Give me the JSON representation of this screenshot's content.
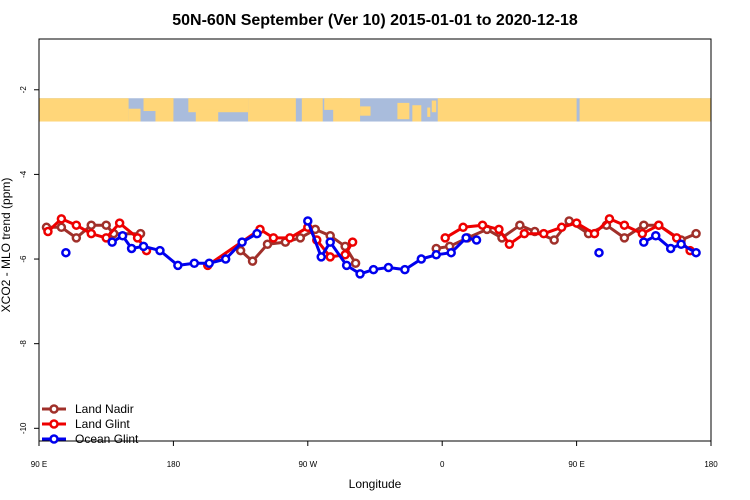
{
  "chart_data": {
    "type": "line",
    "title": "50N-60N September (Ver 10)   2015-01-01 to 2020-12-18",
    "xlabel": "Longitude",
    "ylabel": "XCO2 - MLO trend (ppm)",
    "xlim": [
      90,
      540
    ],
    "ylim": [
      -10.3,
      -0.8
    ],
    "x_ticks": [
      {
        "value": 90,
        "label": "90 E"
      },
      {
        "value": 180,
        "label": "180"
      },
      {
        "value": 270,
        "label": "90 W"
      },
      {
        "value": 360,
        "label": "0"
      },
      {
        "value": 450,
        "label": "90 E"
      },
      {
        "value": 540,
        "label": "180"
      }
    ],
    "y_ticks": [
      {
        "value": -2,
        "label": "-2"
      },
      {
        "value": -4,
        "label": "-4"
      },
      {
        "value": -6,
        "label": "-6"
      },
      {
        "value": -8,
        "label": "-8"
      },
      {
        "value": -10,
        "label": "-10"
      }
    ],
    "map_band": {
      "y_top": -2.2,
      "y_bottom": -2.75,
      "ocean_color": "#a9bcdc",
      "land_color": "#ffd679"
    },
    "legend_position": "bottom-left",
    "series": [
      {
        "name": "Land Nadir",
        "color": "#a0302a",
        "segments": [
          [
            [
              95,
              -5.25
            ],
            [
              105,
              -5.25
            ],
            [
              115,
              -5.5
            ],
            [
              125,
              -5.2
            ],
            [
              135,
              -5.2
            ],
            [
              140,
              -5.4
            ],
            [
              158,
              -5.4
            ]
          ],
          [
            [
              225,
              -5.8
            ],
            [
              233,
              -6.05
            ],
            [
              243,
              -5.65
            ],
            [
              255,
              -5.6
            ],
            [
              265,
              -5.5
            ],
            [
              275,
              -5.3
            ],
            [
              285,
              -5.45
            ],
            [
              295,
              -5.7
            ],
            [
              302,
              -6.1
            ]
          ],
          [
            [
              356,
              -5.75
            ],
            [
              365,
              -5.7
            ],
            [
              377,
              -5.5
            ],
            [
              390,
              -5.3
            ],
            [
              400,
              -5.5
            ],
            [
              412,
              -5.2
            ],
            [
              422,
              -5.35
            ],
            [
              435,
              -5.55
            ],
            [
              445,
              -5.1
            ],
            [
              458,
              -5.4
            ],
            [
              470,
              -5.2
            ],
            [
              482,
              -5.5
            ],
            [
              495,
              -5.2
            ],
            [
              505,
              -5.2
            ],
            [
              520,
              -5.55
            ],
            [
              530,
              -5.4
            ]
          ]
        ],
        "isolated": []
      },
      {
        "name": "Land Glint",
        "color": "#ee0000",
        "segments": [
          [
            [
              96,
              -5.35
            ],
            [
              105,
              -5.05
            ],
            [
              115,
              -5.2
            ],
            [
              125,
              -5.4
            ],
            [
              135,
              -5.5
            ],
            [
              144,
              -5.15
            ],
            [
              156,
              -5.5
            ],
            [
              162,
              -5.8
            ]
          ],
          [
            [
              203,
              -6.15
            ],
            [
              238,
              -5.3
            ],
            [
              247,
              -5.5
            ],
            [
              258,
              -5.5
            ],
            [
              270,
              -5.25
            ],
            [
              276,
              -5.55
            ],
            [
              285,
              -5.95
            ],
            [
              295,
              -5.9
            ],
            [
              300,
              -5.6
            ]
          ],
          [
            [
              362,
              -5.5
            ],
            [
              374,
              -5.25
            ],
            [
              387,
              -5.2
            ],
            [
              398,
              -5.3
            ],
            [
              405,
              -5.65
            ],
            [
              415,
              -5.4
            ],
            [
              428,
              -5.4
            ],
            [
              440,
              -5.25
            ],
            [
              450,
              -5.15
            ],
            [
              462,
              -5.4
            ],
            [
              472,
              -5.05
            ],
            [
              482,
              -5.2
            ],
            [
              494,
              -5.4
            ],
            [
              505,
              -5.2
            ],
            [
              517,
              -5.5
            ],
            [
              526,
              -5.8
            ]
          ]
        ],
        "isolated": []
      },
      {
        "name": "Ocean Glint",
        "color": "#0000ee",
        "segments": [
          [
            [
              139,
              -5.6
            ],
            [
              146,
              -5.45
            ],
            [
              152,
              -5.75
            ],
            [
              160,
              -5.7
            ],
            [
              171,
              -5.8
            ],
            [
              183,
              -6.15
            ],
            [
              194,
              -6.1
            ],
            [
              204,
              -6.1
            ],
            [
              215,
              -6.0
            ],
            [
              226,
              -5.6
            ],
            [
              236,
              -5.4
            ]
          ],
          [
            [
              270,
              -5.1
            ],
            [
              279,
              -5.95
            ],
            [
              285,
              -5.6
            ],
            [
              296,
              -6.15
            ],
            [
              305,
              -6.35
            ],
            [
              314,
              -6.25
            ],
            [
              324,
              -6.2
            ],
            [
              335,
              -6.25
            ],
            [
              346,
              -6.0
            ],
            [
              356,
              -5.9
            ],
            [
              366,
              -5.85
            ],
            [
              376,
              -5.5
            ],
            [
              383,
              -5.55
            ]
          ],
          [
            [
              495,
              -5.6
            ],
            [
              503,
              -5.45
            ],
            [
              513,
              -5.75
            ],
            [
              520,
              -5.65
            ],
            [
              530,
              -5.85
            ]
          ]
        ],
        "isolated": [
          [
            108,
            -5.85
          ],
          [
            465,
            -5.85
          ]
        ]
      }
    ]
  }
}
